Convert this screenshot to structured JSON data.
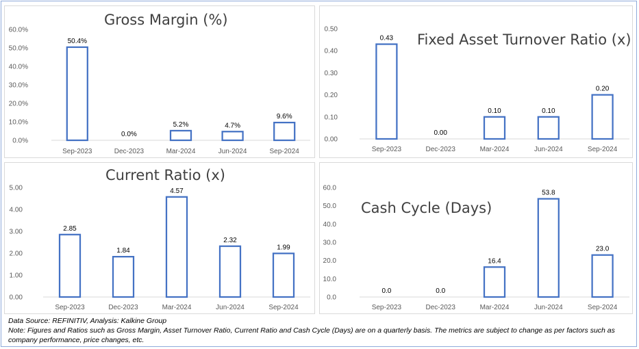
{
  "colors": {
    "bar_stroke": "#4472c4",
    "axis_text": "#595959",
    "label_text": "#000000",
    "axis_line": "#d9d9d9"
  },
  "chart_data": [
    {
      "type": "bar",
      "title": "Gross Margin (%)",
      "categories": [
        "Sep-2023",
        "Dec-2023",
        "Mar-2024",
        "Jun-2024",
        "Sep-2024"
      ],
      "values": [
        50.4,
        0.0,
        5.2,
        4.7,
        9.6
      ],
      "data_labels": [
        "50.4%",
        "0.0%",
        "5.2%",
        "4.7%",
        "9.6%"
      ],
      "yticks": [
        "0.0%",
        "10.0%",
        "20.0%",
        "30.0%",
        "40.0%",
        "50.0%",
        "60.0%"
      ],
      "ylim": [
        0,
        60
      ],
      "xlabel": "",
      "ylabel": "",
      "grid": false,
      "legend": "none"
    },
    {
      "type": "bar",
      "title": "Fixed Asset Turnover Ratio (x)",
      "categories": [
        "Sep-2023",
        "Dec-2023",
        "Mar-2024",
        "Jun-2024",
        "Sep-2024"
      ],
      "values": [
        0.43,
        0.0,
        0.1,
        0.1,
        0.2
      ],
      "data_labels": [
        "0.43",
        "0.00",
        "0.10",
        "0.10",
        "0.20"
      ],
      "yticks": [
        "0.00",
        "0.10",
        "0.20",
        "0.30",
        "0.40",
        "0.50"
      ],
      "ylim": [
        0,
        0.5
      ],
      "xlabel": "",
      "ylabel": "",
      "grid": false,
      "legend": "none"
    },
    {
      "type": "bar",
      "title": "Current Ratio (x)",
      "categories": [
        "Sep-2023",
        "Dec-2023",
        "Mar-2024",
        "Jun-2024",
        "Sep-2024"
      ],
      "values": [
        2.85,
        1.84,
        4.57,
        2.32,
        1.99
      ],
      "data_labels": [
        "2.85",
        "1.84",
        "4.57",
        "2.32",
        "1.99"
      ],
      "yticks": [
        "0.00",
        "1.00",
        "2.00",
        "3.00",
        "4.00",
        "5.00"
      ],
      "ylim": [
        0,
        5
      ],
      "xlabel": "",
      "ylabel": "",
      "grid": false,
      "legend": "none"
    },
    {
      "type": "bar",
      "title": "Cash Cycle (Days)",
      "categories": [
        "Sep-2023",
        "Dec-2023",
        "Mar-2024",
        "Jun-2024",
        "Sep-2024"
      ],
      "values": [
        0.0,
        0.0,
        16.4,
        53.8,
        23.0
      ],
      "data_labels": [
        "0.0",
        "0.0",
        "16.4",
        "53.8",
        "23.0"
      ],
      "yticks": [
        "0.0",
        "10.0",
        "20.0",
        "30.0",
        "40.0",
        "50.0",
        "60.0"
      ],
      "ylim": [
        0,
        60
      ],
      "xlabel": "",
      "ylabel": "",
      "grid": false,
      "legend": "none"
    }
  ],
  "footnotes": {
    "source": "Data Source: REFINITIV, Analysis: Kalkine Group",
    "note": "Note: Figures and Ratios such as Gross Margin, Asset Turnover Ratio, Current Ratio and Cash Cycle (Days) are on a quarterly basis. The metrics are subject to change as per factors such as company performance, price changes, etc."
  }
}
